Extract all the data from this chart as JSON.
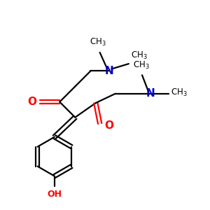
{
  "bg_color": "#ffffff",
  "bond_color": "#000000",
  "O_color": "#ff0000",
  "N_color": "#0000bb",
  "OH_color": "#ff0000",
  "line_width": 1.6,
  "figsize": [
    3.0,
    3.0
  ],
  "dpi": 100,
  "xlim": [
    0,
    10
  ],
  "ylim": [
    0,
    10
  ]
}
